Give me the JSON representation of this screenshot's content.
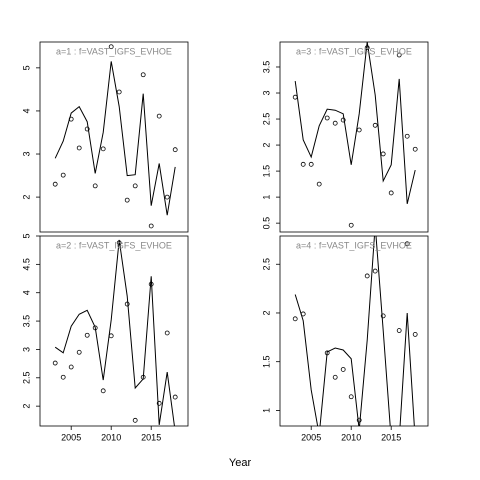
{
  "x_label": "Year",
  "chart_data": [
    {
      "type": "line",
      "title": "a=1  :  f=VAST_IGFS_EVHOE",
      "x": [
        2003,
        2004,
        2005,
        2006,
        2007,
        2008,
        2009,
        2010,
        2011,
        2012,
        2013,
        2014,
        2015,
        2016,
        2017,
        2018
      ],
      "xlim": [
        2001.1,
        2019.6
      ],
      "ylim": [
        1.19,
        5.6
      ],
      "yticks": [
        2,
        3,
        4,
        5
      ],
      "series": [
        {
          "style": "line",
          "color": "#000000",
          "values": [
            2.9,
            3.3,
            3.95,
            4.1,
            3.75,
            2.55,
            3.5,
            5.15,
            4.1,
            2.5,
            2.52,
            4.4,
            1.8,
            2.78,
            1.58,
            2.7
          ]
        },
        {
          "style": "points",
          "color": "#000000",
          "values": [
            2.3,
            2.51,
            3.81,
            3.14,
            3.58,
            2.26,
            3.12,
            5.49,
            4.44,
            1.93,
            2.26,
            4.84,
            1.33,
            3.88,
            2.0,
            3.1
          ]
        }
      ]
    },
    {
      "type": "line",
      "title": "a=3  :  f=VAST_IGFS_EVHOE",
      "x": [
        2003,
        2004,
        2005,
        2006,
        2007,
        2008,
        2009,
        2010,
        2011,
        2012,
        2013,
        2014,
        2015,
        2016,
        2017,
        2018
      ],
      "xlim": [
        2001.1,
        2019.6
      ],
      "ylim": [
        0.33,
        3.98
      ],
      "yticks": [
        0.5,
        1.0,
        1.5,
        2.0,
        2.5,
        3.0,
        3.5
      ],
      "series": [
        {
          "style": "line",
          "color": "#000000",
          "values": [
            3.23,
            2.1,
            1.77,
            2.37,
            2.69,
            2.67,
            2.6,
            1.62,
            2.6,
            3.98,
            2.96,
            1.31,
            1.62,
            3.27,
            0.87,
            1.52
          ]
        },
        {
          "style": "points",
          "color": "#000000",
          "values": [
            2.92,
            1.63,
            1.63,
            1.25,
            2.52,
            2.42,
            2.48,
            0.46,
            2.29,
            3.87,
            2.38,
            1.83,
            1.08,
            3.73,
            2.17,
            1.92
          ]
        }
      ]
    },
    {
      "type": "line",
      "title": "a=2  :  f=VAST_IGFS_EVHOE",
      "x": [
        2003,
        2004,
        2005,
        2006,
        2007,
        2008,
        2009,
        2010,
        2011,
        2012,
        2013,
        2014,
        2015,
        2016,
        2017,
        2018
      ],
      "xlim": [
        2001.1,
        2019.6
      ],
      "xticks": [
        2005,
        2010,
        2015
      ],
      "ylim": [
        1.65,
        5.0
      ],
      "yticks": [
        2.0,
        2.5,
        3.0,
        3.5,
        4.0,
        4.5,
        5.0
      ],
      "series": [
        {
          "style": "line",
          "color": "#000000",
          "values": [
            3.04,
            2.94,
            3.41,
            3.62,
            3.69,
            3.39,
            2.46,
            3.52,
            4.93,
            3.94,
            2.32,
            2.48,
            4.29,
            1.67,
            2.6,
            1.55
          ]
        },
        {
          "style": "points",
          "color": "#000000",
          "values": [
            2.76,
            2.51,
            2.69,
            2.95,
            3.25,
            3.38,
            2.27,
            3.24,
            4.88,
            3.8,
            1.75,
            2.51,
            4.15,
            2.05,
            3.29,
            2.16
          ]
        }
      ]
    },
    {
      "type": "line",
      "title": "a=4  :  f=VAST_IGFS_EVHOE",
      "x": [
        2003,
        2004,
        2005,
        2006,
        2007,
        2008,
        2009,
        2010,
        2011,
        2012,
        2013,
        2014,
        2015,
        2016,
        2017,
        2018
      ],
      "xlim": [
        2001.1,
        2019.6
      ],
      "xticks": [
        2005,
        2010,
        2015
      ],
      "ylim": [
        0.84,
        2.79
      ],
      "yticks": [
        1.0,
        1.5,
        2.0,
        2.5
      ],
      "series": [
        {
          "style": "line",
          "color": "#000000",
          "values": [
            2.19,
            1.92,
            1.21,
            0.75,
            1.6,
            1.64,
            1.62,
            1.53,
            0.8,
            1.72,
            2.9,
            1.82,
            0.7,
            0.7,
            2.0,
            0.7
          ]
        },
        {
          "style": "points",
          "color": "#000000",
          "values": [
            1.94,
            1.99,
            null,
            null,
            1.59,
            1.34,
            1.42,
            1.14,
            0.9,
            2.38,
            2.43,
            1.97,
            null,
            1.82,
            2.71,
            1.78
          ]
        }
      ]
    }
  ]
}
